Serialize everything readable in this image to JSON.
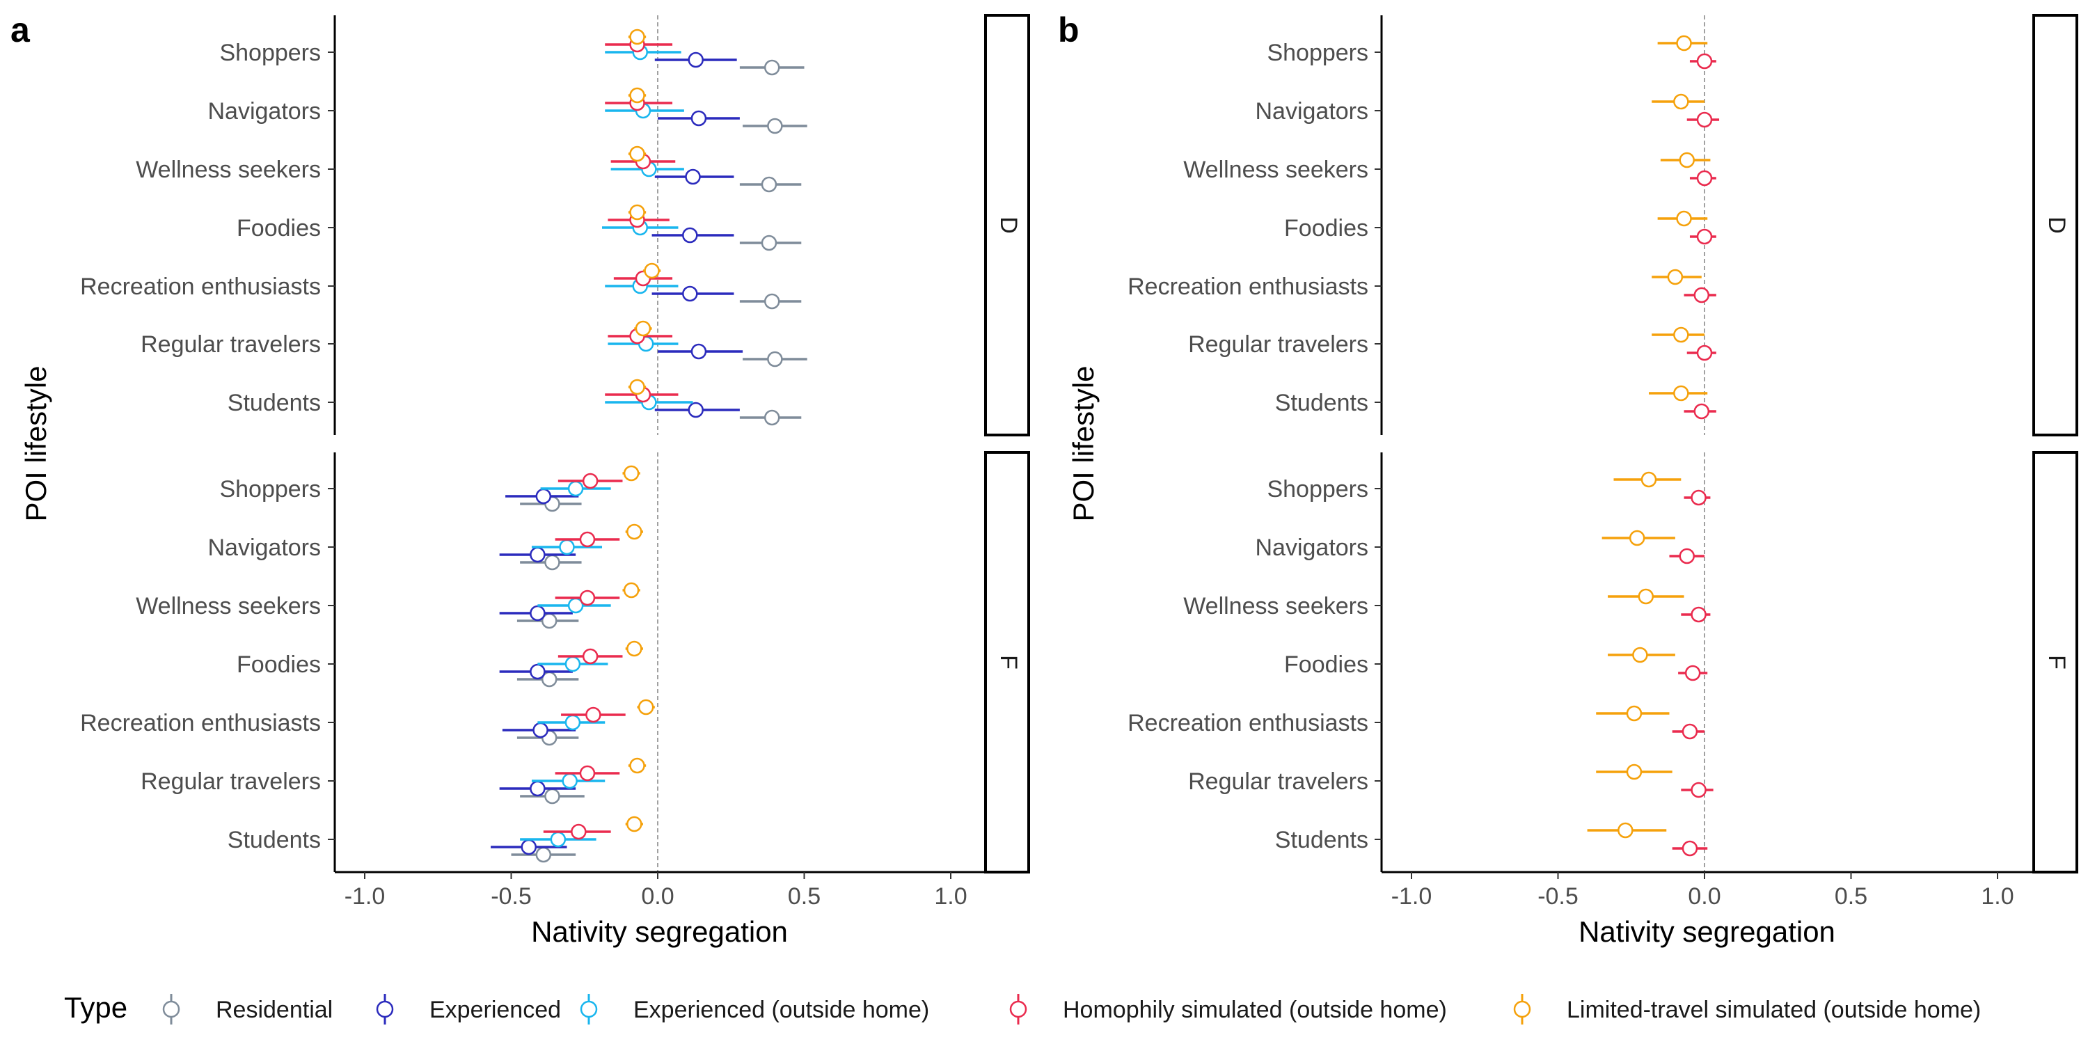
{
  "chart_data": [
    {
      "panel_label": "a",
      "type": "scatter",
      "subtype": "point-range (dot-and-whisker)",
      "xlabel": "Nativity segregation",
      "ylabel": "POI lifestyle",
      "xlim": [
        -1.1,
        1.25
      ],
      "xticks": [
        -1.0,
        -0.5,
        0.0,
        0.5,
        1.0
      ],
      "xtick_labels": [
        "-1.0",
        "-0.5",
        "0.0",
        "0.5",
        "1.0"
      ],
      "reference_line": {
        "x": 0,
        "style": "dashed"
      },
      "categories": [
        "Shoppers",
        "Navigators",
        "Wellness seekers",
        "Foodies",
        "Recreation enthusiasts",
        "Regular travelers",
        "Students"
      ],
      "facets": [
        {
          "strip": "D",
          "series": [
            {
              "name": "Residential",
              "values": [
                0.39,
                0.4,
                0.38,
                0.38,
                0.39,
                0.4,
                0.39
              ],
              "lo": [
                0.28,
                0.29,
                0.28,
                0.28,
                0.28,
                0.29,
                0.28
              ],
              "hi": [
                0.5,
                0.51,
                0.49,
                0.49,
                0.49,
                0.51,
                0.49
              ]
            },
            {
              "name": "Experienced",
              "values": [
                0.13,
                0.14,
                0.12,
                0.11,
                0.11,
                0.14,
                0.13
              ],
              "lo": [
                -0.01,
                0.0,
                -0.01,
                -0.02,
                -0.02,
                0.0,
                -0.01
              ],
              "hi": [
                0.27,
                0.28,
                0.26,
                0.26,
                0.26,
                0.29,
                0.28
              ]
            },
            {
              "name": "Experienced (outside home)",
              "values": [
                -0.06,
                -0.05,
                -0.03,
                -0.06,
                -0.06,
                -0.04,
                -0.03
              ],
              "lo": [
                -0.18,
                -0.18,
                -0.16,
                -0.19,
                -0.18,
                -0.17,
                -0.18
              ],
              "hi": [
                0.08,
                0.09,
                0.09,
                0.07,
                0.07,
                0.07,
                0.12
              ]
            },
            {
              "name": "Homophily simulated (outside home)",
              "values": [
                -0.07,
                -0.07,
                -0.05,
                -0.07,
                -0.05,
                -0.07,
                -0.05
              ],
              "lo": [
                -0.18,
                -0.18,
                -0.16,
                -0.17,
                -0.15,
                -0.17,
                -0.18
              ],
              "hi": [
                0.05,
                0.05,
                0.06,
                0.04,
                0.05,
                0.05,
                0.07
              ]
            },
            {
              "name": "Limited-travel simulated (outside home)",
              "values": [
                -0.07,
                -0.07,
                -0.07,
                -0.07,
                -0.02,
                -0.05,
                -0.07
              ],
              "lo": [
                -0.1,
                -0.1,
                -0.1,
                -0.1,
                -0.05,
                -0.08,
                -0.1
              ],
              "hi": [
                -0.04,
                -0.04,
                -0.04,
                -0.04,
                0.01,
                -0.02,
                -0.04
              ]
            }
          ]
        },
        {
          "strip": "F",
          "series": [
            {
              "name": "Residential",
              "values": [
                -0.36,
                -0.36,
                -0.37,
                -0.37,
                -0.37,
                -0.36,
                -0.39
              ],
              "lo": [
                -0.47,
                -0.47,
                -0.48,
                -0.48,
                -0.48,
                -0.47,
                -0.5
              ],
              "hi": [
                -0.26,
                -0.26,
                -0.27,
                -0.27,
                -0.27,
                -0.25,
                -0.28
              ]
            },
            {
              "name": "Experienced",
              "values": [
                -0.39,
                -0.41,
                -0.41,
                -0.41,
                -0.4,
                -0.41,
                -0.44
              ],
              "lo": [
                -0.52,
                -0.54,
                -0.54,
                -0.54,
                -0.53,
                -0.54,
                -0.57
              ],
              "hi": [
                -0.27,
                -0.28,
                -0.29,
                -0.29,
                -0.28,
                -0.28,
                -0.31
              ]
            },
            {
              "name": "Experienced (outside home)",
              "values": [
                -0.28,
                -0.31,
                -0.28,
                -0.29,
                -0.29,
                -0.3,
                -0.34
              ],
              "lo": [
                -0.4,
                -0.43,
                -0.41,
                -0.41,
                -0.41,
                -0.43,
                -0.47
              ],
              "hi": [
                -0.16,
                -0.19,
                -0.16,
                -0.17,
                -0.18,
                -0.18,
                -0.21
              ]
            },
            {
              "name": "Homophily simulated (outside home)",
              "values": [
                -0.23,
                -0.24,
                -0.24,
                -0.23,
                -0.22,
                -0.24,
                -0.27
              ],
              "lo": [
                -0.34,
                -0.35,
                -0.35,
                -0.34,
                -0.33,
                -0.35,
                -0.39
              ],
              "hi": [
                -0.12,
                -0.13,
                -0.13,
                -0.12,
                -0.11,
                -0.13,
                -0.16
              ]
            },
            {
              "name": "Limited-travel simulated (outside home)",
              "values": [
                -0.09,
                -0.08,
                -0.09,
                -0.08,
                -0.04,
                -0.07,
                -0.08
              ],
              "lo": [
                -0.12,
                -0.11,
                -0.12,
                -0.11,
                -0.07,
                -0.1,
                -0.11
              ],
              "hi": [
                -0.06,
                -0.05,
                -0.06,
                -0.05,
                -0.01,
                -0.04,
                -0.05
              ]
            }
          ]
        }
      ]
    },
    {
      "panel_label": "b",
      "type": "scatter",
      "subtype": "point-range (dot-and-whisker)",
      "xlabel": "Nativity segregation",
      "ylabel": "POI lifestyle",
      "xlim": [
        -1.1,
        1.25
      ],
      "xticks": [
        -1.0,
        -0.5,
        0.0,
        0.5,
        1.0
      ],
      "xtick_labels": [
        "-1.0",
        "-0.5",
        "0.0",
        "0.5",
        "1.0"
      ],
      "reference_line": {
        "x": 0,
        "style": "dashed"
      },
      "categories": [
        "Shoppers",
        "Navigators",
        "Wellness seekers",
        "Foodies",
        "Recreation enthusiasts",
        "Regular travelers",
        "Students"
      ],
      "facets": [
        {
          "strip": "D",
          "series": [
            {
              "name": "Homophily simulated (outside home)",
              "values": [
                0.0,
                0.0,
                0.0,
                0.0,
                -0.01,
                0.0,
                -0.01
              ],
              "lo": [
                -0.05,
                -0.06,
                -0.05,
                -0.05,
                -0.07,
                -0.06,
                -0.07
              ],
              "hi": [
                0.04,
                0.05,
                0.04,
                0.04,
                0.04,
                0.04,
                0.04
              ]
            },
            {
              "name": "Limited-travel simulated (outside home)",
              "values": [
                -0.07,
                -0.08,
                -0.06,
                -0.07,
                -0.1,
                -0.08,
                -0.08
              ],
              "lo": [
                -0.16,
                -0.18,
                -0.15,
                -0.16,
                -0.18,
                -0.18,
                -0.19
              ],
              "hi": [
                0.01,
                0.0,
                0.02,
                0.01,
                -0.01,
                0.0,
                0.01
              ]
            }
          ]
        },
        {
          "strip": "F",
          "series": [
            {
              "name": "Homophily simulated (outside home)",
              "values": [
                -0.02,
                -0.06,
                -0.02,
                -0.04,
                -0.05,
                -0.02,
                -0.05
              ],
              "lo": [
                -0.07,
                -0.12,
                -0.08,
                -0.09,
                -0.11,
                -0.08,
                -0.11
              ],
              "hi": [
                0.02,
                0.0,
                0.02,
                0.01,
                0.0,
                0.03,
                0.01
              ]
            },
            {
              "name": "Limited-travel simulated (outside home)",
              "values": [
                -0.19,
                -0.23,
                -0.2,
                -0.22,
                -0.24,
                -0.24,
                -0.27
              ],
              "lo": [
                -0.31,
                -0.35,
                -0.33,
                -0.33,
                -0.37,
                -0.37,
                -0.4
              ],
              "hi": [
                -0.08,
                -0.1,
                -0.07,
                -0.1,
                -0.12,
                -0.11,
                -0.13
              ]
            }
          ]
        }
      ]
    }
  ],
  "legend": {
    "title": "Type",
    "position": "bottom",
    "items": [
      {
        "label": "Residential",
        "color": "#7f8c9a"
      },
      {
        "label": "Experienced",
        "color": "#2b2bbd"
      },
      {
        "label": "Experienced (outside home)",
        "color": "#19b6ee"
      },
      {
        "label": "Homophily simulated (outside home)",
        "color": "#ea2b4e"
      },
      {
        "label": "Limited-travel simulated (outside home)",
        "color": "#f5a10b"
      }
    ]
  },
  "colors": {
    "Residential": "#7f8c9a",
    "Experienced": "#2b2bbd",
    "Experienced (outside home)": "#19b6ee",
    "Homophily simulated (outside home)": "#ea2b4e",
    "Limited-travel simulated (outside home)": "#f5a10b"
  }
}
